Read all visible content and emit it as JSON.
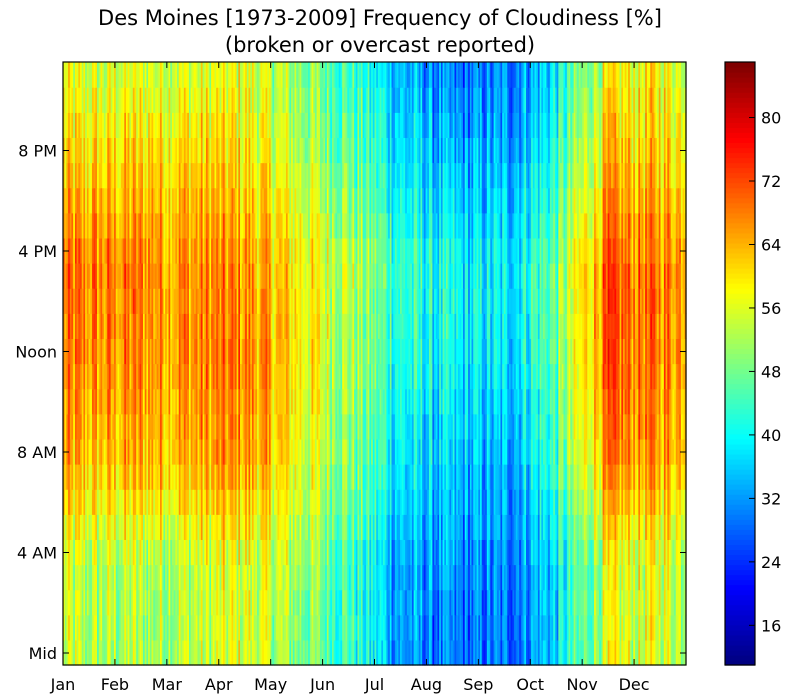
{
  "chart_data": {
    "type": "heatmap",
    "title": "Des Moines [1973-2009] Frequency of Cloudiness [%]",
    "subtitle": "(broken or overcast reported)",
    "xlabel": "",
    "ylabel": "",
    "x_ticks": [
      "Jan",
      "Feb",
      "Mar",
      "Apr",
      "May",
      "Jun",
      "Jul",
      "Aug",
      "Sep",
      "Oct",
      "Nov",
      "Dec"
    ],
    "y_ticks": [
      "Mid",
      "4 AM",
      "8 AM",
      "Noon",
      "4 PM",
      "8 PM"
    ],
    "colorbar_ticks": [
      16,
      24,
      32,
      40,
      48,
      56,
      64,
      72,
      80
    ],
    "colorbar_range": [
      11,
      87
    ],
    "colormap": "jet",
    "grid": false,
    "z_matrix_note_free": true,
    "row_hours": [
      0,
      4,
      8,
      12,
      16,
      20
    ],
    "rows": [
      {
        "hour": 0,
        "values": [
          52,
          52,
          53,
          56,
          50,
          44,
          32,
          27,
          28,
          36,
          55,
          56
        ]
      },
      {
        "hour": 4,
        "values": [
          52,
          53,
          54,
          56,
          52,
          45,
          33,
          30,
          30,
          37,
          55,
          56
        ]
      },
      {
        "hour": 8,
        "values": [
          62,
          64,
          64,
          66,
          58,
          50,
          38,
          34,
          33,
          44,
          66,
          66
        ]
      },
      {
        "hour": 12,
        "values": [
          66,
          67,
          67,
          68,
          60,
          52,
          42,
          38,
          37,
          47,
          70,
          68
        ]
      },
      {
        "hour": 16,
        "values": [
          68,
          68,
          67,
          66,
          60,
          54,
          44,
          39,
          38,
          48,
          70,
          68
        ]
      },
      {
        "hour": 20,
        "values": [
          60,
          62,
          62,
          60,
          54,
          48,
          38,
          33,
          33,
          42,
          62,
          62
        ]
      },
      {
        "hour": 24,
        "values": [
          54,
          55,
          55,
          56,
          50,
          44,
          34,
          28,
          29,
          38,
          57,
          58
        ]
      }
    ]
  }
}
